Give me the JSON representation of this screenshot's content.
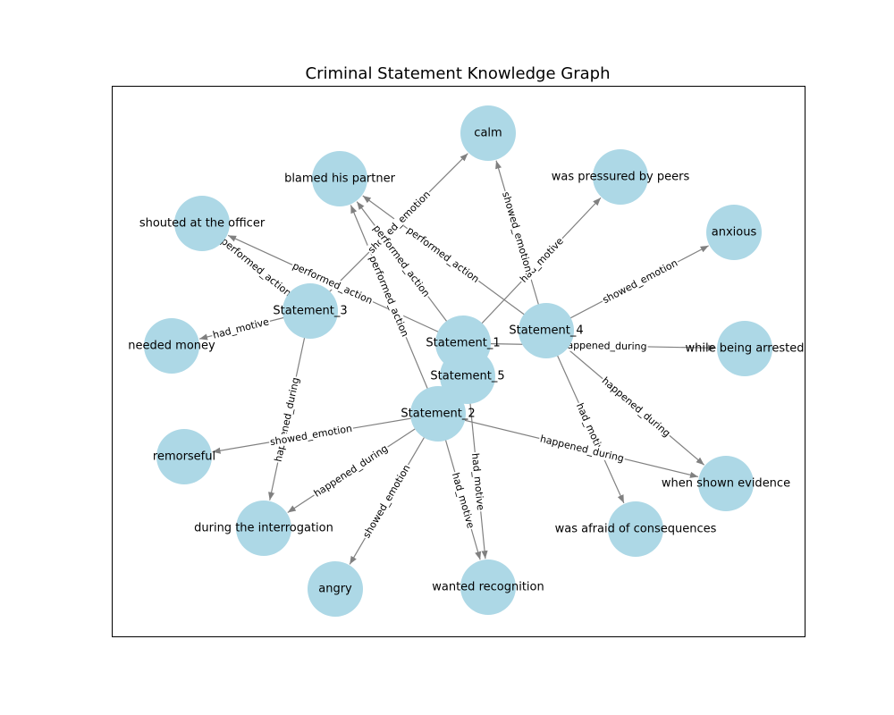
{
  "title": "Criminal Statement Knowledge Graph",
  "colors": {
    "node": "#add8e6",
    "edge": "#808080",
    "frame": "#000000",
    "background": "#ffffff"
  },
  "nodes": [
    {
      "id": "calm",
      "label": "calm"
    },
    {
      "id": "blamed_his_partner",
      "label": "blamed his partner"
    },
    {
      "id": "was_pressured_by_peers",
      "label": "was pressured by peers"
    },
    {
      "id": "shouted_at_the_officer",
      "label": "shouted at the officer"
    },
    {
      "id": "anxious",
      "label": "anxious"
    },
    {
      "id": "statement_3",
      "label": "Statement_3"
    },
    {
      "id": "statement_4",
      "label": "Statement_4"
    },
    {
      "id": "needed_money",
      "label": "needed money"
    },
    {
      "id": "statement_1",
      "label": "Statement_1"
    },
    {
      "id": "while_being_arrested",
      "label": "while being arrested"
    },
    {
      "id": "statement_5",
      "label": "Statement_5"
    },
    {
      "id": "statement_2",
      "label": "Statement_2"
    },
    {
      "id": "remorseful",
      "label": "remorseful"
    },
    {
      "id": "when_shown_evidence",
      "label": "when shown evidence"
    },
    {
      "id": "during_the_interrogation",
      "label": "during the interrogation"
    },
    {
      "id": "was_afraid_of_consequences",
      "label": "was afraid of consequences"
    },
    {
      "id": "angry",
      "label": "angry"
    },
    {
      "id": "wanted_recognition",
      "label": "wanted recognition"
    }
  ],
  "edges": [
    {
      "from": "statement_3",
      "to": "calm",
      "label": "showed_emotion"
    },
    {
      "from": "statement_3",
      "to": "shouted_at_the_officer",
      "label": "performed_action"
    },
    {
      "from": "statement_3",
      "to": "needed_money",
      "label": "had_motive"
    },
    {
      "from": "statement_3",
      "to": "during_the_interrogation",
      "label": "happened_during"
    },
    {
      "from": "statement_1",
      "to": "shouted_at_the_officer",
      "label": "performed_action"
    },
    {
      "from": "statement_1",
      "to": "blamed_his_partner",
      "label": "performed_action"
    },
    {
      "from": "statement_1",
      "to": "was_pressured_by_peers",
      "label": "had_motive"
    },
    {
      "from": "statement_1",
      "to": "while_being_arrested",
      "label": "happened_during"
    },
    {
      "from": "statement_4",
      "to": "calm",
      "label": "showed_emotion"
    },
    {
      "from": "statement_4",
      "to": "blamed_his_partner",
      "label": "performed_action"
    },
    {
      "from": "statement_4",
      "to": "anxious",
      "label": "showed_emotion"
    },
    {
      "from": "statement_4",
      "to": "when_shown_evidence",
      "label": "happened_during"
    },
    {
      "from": "statement_4",
      "to": "was_afraid_of_consequences",
      "label": "had_motive"
    },
    {
      "from": "statement_5",
      "to": "wanted_recognition",
      "label": "had_motive"
    },
    {
      "from": "statement_2",
      "to": "blamed_his_partner",
      "label": "performed_action"
    },
    {
      "from": "statement_2",
      "to": "remorseful",
      "label": "showed_emotion"
    },
    {
      "from": "statement_2",
      "to": "during_the_interrogation",
      "label": "happened_during"
    },
    {
      "from": "statement_2",
      "to": "angry",
      "label": "showed_emotion"
    },
    {
      "from": "statement_2",
      "to": "wanted_recognition",
      "label": "had_motive"
    },
    {
      "from": "statement_2",
      "to": "when_shown_evidence",
      "label": "happened_during"
    }
  ]
}
